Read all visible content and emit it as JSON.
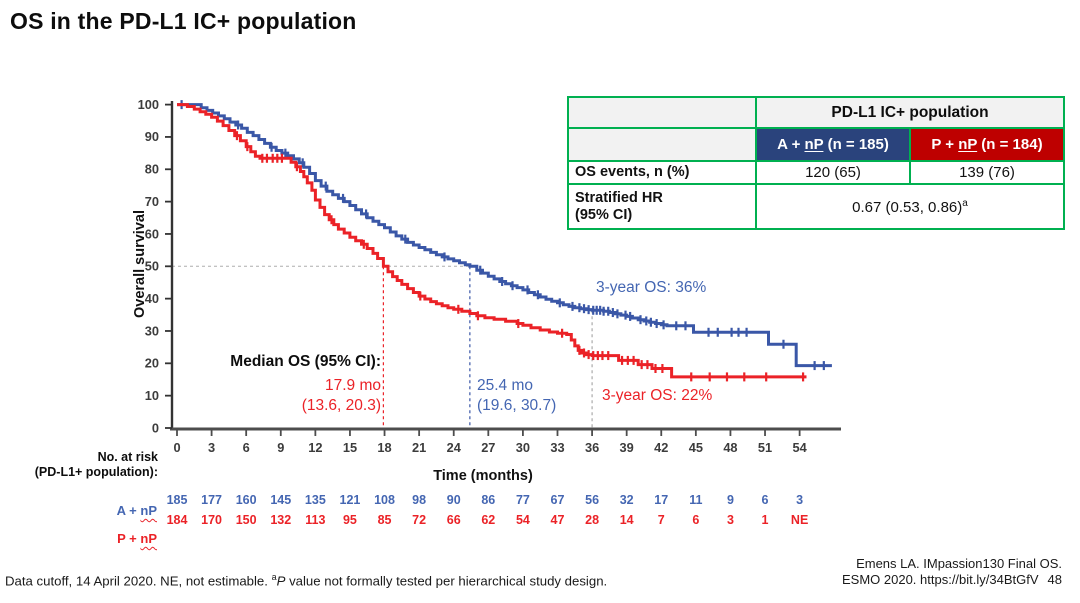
{
  "slide": {
    "title": "OS in the PD-L1 IC+ population",
    "footnote": {
      "part1": "Data cutoff, 14 April 2020. NE, not estimable. ",
      "sup": "a",
      "italic": "P",
      "part2": " value not formally tested per hierarchical study design."
    },
    "citation_line1": "Emens LA. IMpassion130 Final OS.",
    "citation_line2": "ESMO 2020. https://bit.ly/34BtGfV",
    "page_number": "48"
  },
  "summary_table": {
    "population_header": "PD-L1 IC+ population",
    "arm_a_header": {
      "prefix": "A + ",
      "underlined": "nP",
      "suffix": " (n = 185)"
    },
    "arm_p_header": {
      "prefix": "P + ",
      "underlined": "nP",
      "suffix": " (n = 184)"
    },
    "os_events": {
      "label": "OS events, n (%)",
      "arm_a": "120 (65)",
      "arm_p": "139 (76)"
    },
    "hr": {
      "label_line1": "Stratified HR",
      "label_line2": "(95% CI)",
      "value": "0.67 (0.53, 0.86)",
      "sup": "a"
    }
  },
  "annotations": {
    "median_label": "Median OS (95% CI):",
    "median_red_line1": "17.9 mo",
    "median_red_line2": "(13.6, 20.3)",
    "median_blue_line1": "25.4 mo",
    "median_blue_line2": "(19.6, 30.7)",
    "three_year_blue": "3-year OS: 36%",
    "three_year_red": "3-year OS: 22%"
  },
  "at_risk": {
    "header_line1": "No. at risk",
    "header_line2": "(PD-L1+ population):",
    "arm_a_label": {
      "prefix": "A + ",
      "underlined": "nP"
    },
    "arm_p_label": {
      "prefix": "P + ",
      "underlined": "nP"
    },
    "arm_a_counts": [
      "185",
      "177",
      "160",
      "145",
      "135",
      "121",
      "108",
      "98",
      "90",
      "86",
      "77",
      "67",
      "56",
      "32",
      "17",
      "11",
      "9",
      "6",
      "3"
    ],
    "arm_p_counts": [
      "184",
      "170",
      "150",
      "132",
      "113",
      "95",
      "85",
      "72",
      "66",
      "62",
      "54",
      "47",
      "28",
      "14",
      "7",
      "6",
      "3",
      "1",
      "NE"
    ]
  },
  "colors": {
    "curve_blue": "#3A57A7",
    "curve_red": "#EB2227",
    "text_blue": "#4466B2",
    "text_red": "#EB2227",
    "table_border_green": "#00B050",
    "header_blue": "#2A437C",
    "header_red": "#BE0000",
    "header_gray": "#F2F2F2",
    "dash_gray": "#ADADAD",
    "axis": "#4D4D4D"
  },
  "chart_data": {
    "type": "line",
    "subtype": "kaplan-meier-step",
    "xlabel": "Time (months)",
    "ylabel": "Overall survival",
    "xlim": [
      0,
      57
    ],
    "ylim": [
      0,
      100
    ],
    "x_ticks": [
      0,
      3,
      6,
      9,
      12,
      15,
      18,
      21,
      24,
      27,
      30,
      33,
      36,
      39,
      42,
      45,
      48,
      51,
      54
    ],
    "y_ticks": [
      0,
      10,
      20,
      30,
      40,
      50,
      60,
      70,
      80,
      90,
      100
    ],
    "grid": false,
    "reference_lines": {
      "horizontal_50pct": {
        "y": 50,
        "x_from": 0,
        "x_to": 25.4
      },
      "median_red": {
        "x": 17.9,
        "y_from": 0,
        "y_to": 50
      },
      "median_blue": {
        "x": 25.4,
        "y_from": 0,
        "y_to": 50
      },
      "three_year": {
        "x": 36,
        "y_from": 0,
        "y_to": 36.4
      }
    },
    "series": [
      {
        "name": "A + nP",
        "n": 185,
        "median_months": 25.4,
        "median_ci": "19.6, 30.7",
        "three_year_os_pct": 36,
        "steps": [
          [
            0,
            100
          ],
          [
            1.6,
            100
          ],
          [
            2.1,
            99
          ],
          [
            2.6,
            98.2
          ],
          [
            3.1,
            97.4
          ],
          [
            3.6,
            96.5
          ],
          [
            4.1,
            95.6
          ],
          [
            4.6,
            94.6
          ],
          [
            5.1,
            93.7
          ],
          [
            5.6,
            92.7
          ],
          [
            6.1,
            91.4
          ],
          [
            6.6,
            90.4
          ],
          [
            7.1,
            89.2
          ],
          [
            7.6,
            88
          ],
          [
            8.1,
            86.8
          ],
          [
            8.6,
            85.8
          ],
          [
            9.1,
            85
          ],
          [
            9.6,
            84.2
          ],
          [
            10.1,
            83.2
          ],
          [
            10.6,
            82
          ],
          [
            11,
            80.6
          ],
          [
            11.5,
            78.7
          ],
          [
            12,
            76.5
          ],
          [
            12.5,
            74.8
          ],
          [
            13,
            73.2
          ],
          [
            13.5,
            72.1
          ],
          [
            14,
            71
          ],
          [
            14.5,
            70
          ],
          [
            15,
            68.8
          ],
          [
            15.5,
            67.5
          ],
          [
            16,
            66.2
          ],
          [
            16.5,
            65
          ],
          [
            17,
            63.9
          ],
          [
            17.5,
            62.9
          ],
          [
            18,
            61.9
          ],
          [
            18.5,
            60.6
          ],
          [
            19,
            59.4
          ],
          [
            19.5,
            58.4
          ],
          [
            20,
            57.4
          ],
          [
            20.5,
            56.6
          ],
          [
            21,
            55.8
          ],
          [
            21.5,
            55.1
          ],
          [
            22,
            54.3
          ],
          [
            22.5,
            53.6
          ],
          [
            23,
            52.9
          ],
          [
            23.5,
            52.3
          ],
          [
            24,
            51.7
          ],
          [
            24.5,
            51.1
          ],
          [
            25,
            50.5
          ],
          [
            25.4,
            50
          ],
          [
            26,
            48.8
          ],
          [
            26.5,
            47.9
          ],
          [
            27,
            46.9
          ],
          [
            27.5,
            46.1
          ],
          [
            28,
            45.3
          ],
          [
            28.5,
            44.6
          ],
          [
            29,
            44
          ],
          [
            29.5,
            43.4
          ],
          [
            30,
            42.7
          ],
          [
            30.5,
            41.9
          ],
          [
            31,
            41.2
          ],
          [
            31.5,
            40.5
          ],
          [
            32,
            39.8
          ],
          [
            32.5,
            39.2
          ],
          [
            33,
            38.7
          ],
          [
            33.5,
            38.1
          ],
          [
            34,
            37.6
          ],
          [
            34.5,
            37.2
          ],
          [
            35,
            36.9
          ],
          [
            35.5,
            36.6
          ],
          [
            36,
            36.4
          ],
          [
            37,
            36.1
          ],
          [
            37.5,
            35.7
          ],
          [
            38,
            35.3
          ],
          [
            38.5,
            34.9
          ],
          [
            39,
            34.5
          ],
          [
            39.5,
            34
          ],
          [
            40,
            33.5
          ],
          [
            40.5,
            33.1
          ],
          [
            41,
            32.7
          ],
          [
            41.5,
            32.3
          ],
          [
            42,
            31.9
          ],
          [
            42.5,
            31.6
          ],
          [
            44.8,
            29.6
          ],
          [
            51.3,
            25.9
          ],
          [
            53.7,
            19.3
          ],
          [
            56.8,
            19.3
          ]
        ],
        "censor_times": [
          0.4,
          5.3,
          8.2,
          9.4,
          10.9,
          12.9,
          14.4,
          16.4,
          19.8,
          23.2,
          26.3,
          28.2,
          29.1,
          30.4,
          31.3,
          33.2,
          34.3,
          34.9,
          35.3,
          35.7,
          36.1,
          36.4,
          36.7,
          37,
          37.4,
          37.8,
          38.2,
          38.9,
          39.3,
          40.2,
          40.7,
          41.1,
          41.6,
          42.2,
          43.3,
          44.1,
          46.1,
          46.9,
          48.1,
          48.7,
          49.4,
          52.6,
          55.3,
          56.1
        ]
      },
      {
        "name": "P + nP",
        "n": 184,
        "median_months": 17.9,
        "median_ci": "13.6, 20.3",
        "three_year_os_pct": 22,
        "steps": [
          [
            0,
            100
          ],
          [
            0.9,
            99.4
          ],
          [
            1.5,
            98.6
          ],
          [
            2,
            97.8
          ],
          [
            2.5,
            97
          ],
          [
            3,
            96.1
          ],
          [
            3.5,
            94.9
          ],
          [
            4,
            93.5
          ],
          [
            4.5,
            92
          ],
          [
            5,
            90.4
          ],
          [
            5.5,
            88.8
          ],
          [
            6,
            87
          ],
          [
            6.4,
            85.4
          ],
          [
            6.8,
            84
          ],
          [
            7.2,
            83.4
          ],
          [
            9.6,
            83.4
          ],
          [
            9.9,
            82.2
          ],
          [
            10.3,
            80.8
          ],
          [
            10.7,
            79.3
          ],
          [
            11,
            77.7
          ],
          [
            11.3,
            75.8
          ],
          [
            11.7,
            73.5
          ],
          [
            12,
            70.5
          ],
          [
            12.4,
            68.2
          ],
          [
            12.8,
            66
          ],
          [
            13.2,
            64.4
          ],
          [
            13.6,
            62.9
          ],
          [
            14,
            61.5
          ],
          [
            14.5,
            60.3
          ],
          [
            15,
            59
          ],
          [
            15.5,
            57.9
          ],
          [
            16,
            56.8
          ],
          [
            16.5,
            55.5
          ],
          [
            17,
            54
          ],
          [
            17.4,
            52.4
          ],
          [
            17.9,
            50
          ],
          [
            18.3,
            48.3
          ],
          [
            18.7,
            46.8
          ],
          [
            19.1,
            45.6
          ],
          [
            19.5,
            44.4
          ],
          [
            20,
            43.1
          ],
          [
            20.5,
            41.9
          ],
          [
            21,
            40.8
          ],
          [
            21.5,
            39.9
          ],
          [
            22,
            39.1
          ],
          [
            22.5,
            38.4
          ],
          [
            23,
            37.8
          ],
          [
            23.5,
            37.2
          ],
          [
            24,
            36.7
          ],
          [
            24.7,
            36.1
          ],
          [
            25.4,
            35.4
          ],
          [
            26,
            34.7
          ],
          [
            26.7,
            34.1
          ],
          [
            27.5,
            33.6
          ],
          [
            28.5,
            33
          ],
          [
            29.5,
            32.3
          ],
          [
            30,
            31.8
          ],
          [
            30.7,
            31
          ],
          [
            31.5,
            30.3
          ],
          [
            32.3,
            29.7
          ],
          [
            33,
            29.3
          ],
          [
            33.8,
            28.9
          ],
          [
            34.2,
            27.2
          ],
          [
            34.5,
            25.4
          ],
          [
            34.8,
            24
          ],
          [
            35.1,
            23.2
          ],
          [
            35.5,
            22.7
          ],
          [
            36,
            22.4
          ],
          [
            38.3,
            20.9
          ],
          [
            40,
            19.6
          ],
          [
            41.2,
            18.4
          ],
          [
            42.9,
            15.8
          ],
          [
            54.6,
            15.8
          ]
        ],
        "censor_times": [
          5.2,
          6.1,
          7.4,
          7.8,
          8.3,
          8.7,
          9.1,
          10.4,
          13.4,
          16.2,
          21.1,
          24.4,
          26.1,
          29.6,
          33.4,
          34.9,
          35.3,
          35.7,
          36.1,
          36.5,
          36.9,
          37.4,
          38.6,
          39.1,
          39.6,
          40.3,
          40.8,
          41.5,
          42.1,
          44.6,
          46.2,
          47.7,
          49.2,
          51.1,
          54.3
        ]
      }
    ]
  }
}
